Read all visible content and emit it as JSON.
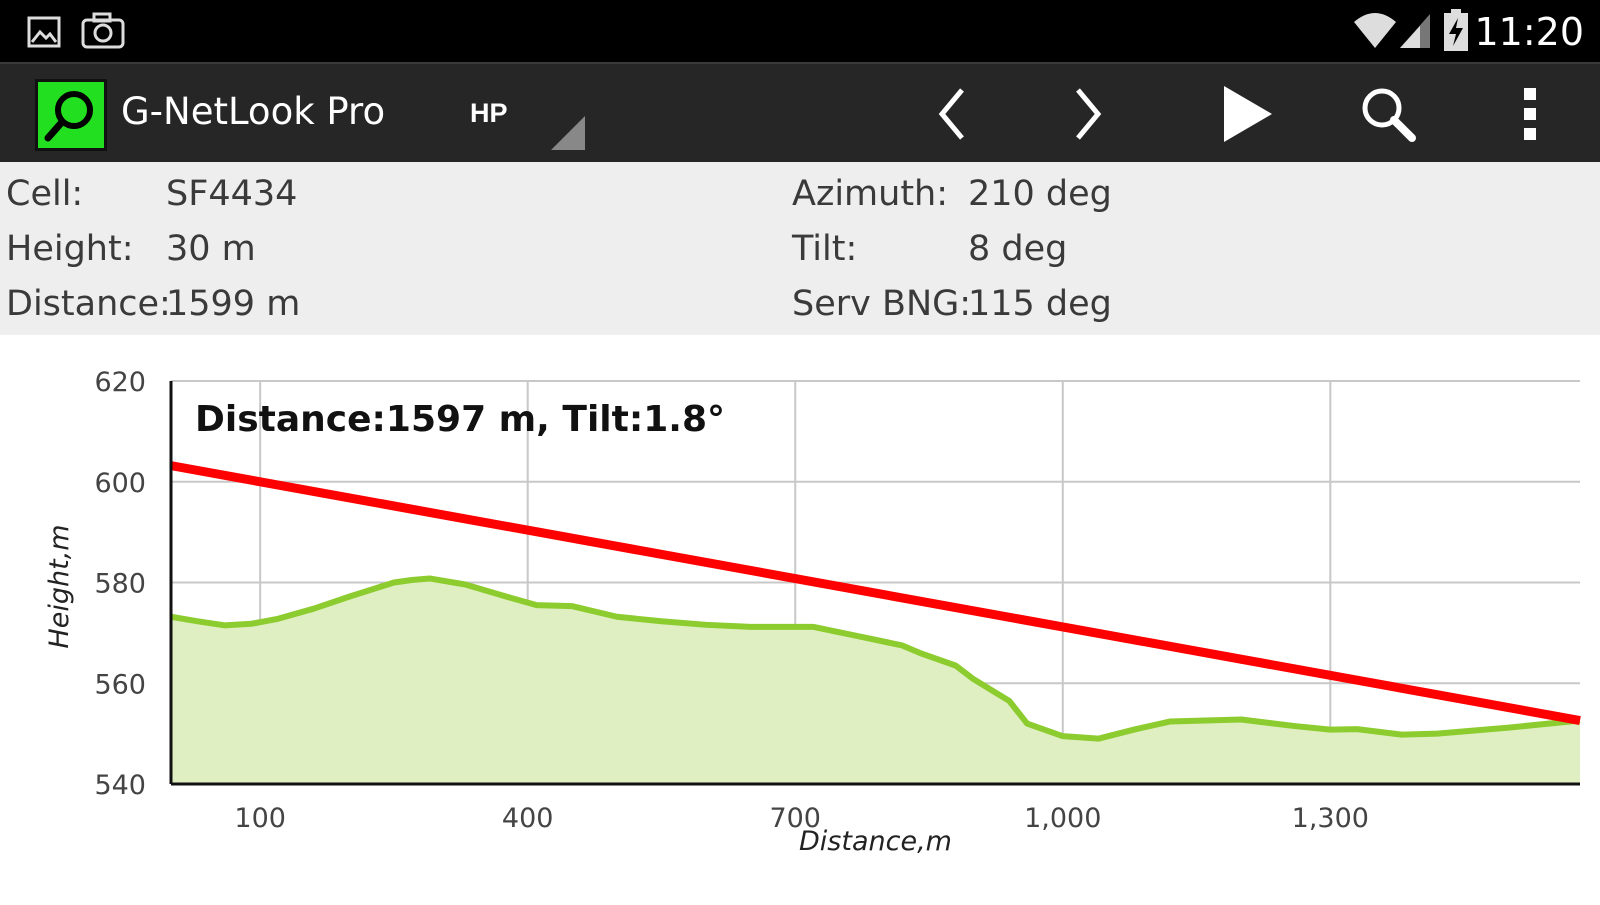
{
  "status_bar": {
    "time": "11:20",
    "left_icons": [
      "picture-icon",
      "camera-icon"
    ],
    "right_icons": [
      "wifi-icon",
      "signal-icon",
      "battery-charging-icon"
    ]
  },
  "action_bar": {
    "app_title": "G-NetLook Pro",
    "spinner_value": "HP",
    "buttons": [
      "previous-icon",
      "next-icon",
      "play-icon",
      "search-icon",
      "overflow-menu-icon"
    ]
  },
  "info": {
    "cell_label": "Cell:",
    "cell_value": "SF4434",
    "height_label": "Height:",
    "height_value": "30 m",
    "distance_label": "Distance:",
    "distance_value": "1599 m",
    "azimuth_label": "Azimuth:",
    "azimuth_value": "210 deg",
    "tilt_label": "Tilt:",
    "tilt_value": "8 deg",
    "serv_label": "Serv BNG:",
    "serv_value": "115 deg"
  },
  "colors": {
    "terrain_line": "#8ccc2e",
    "terrain_fill": "#dfefc2",
    "beam_line": "#ff0000",
    "logo_green": "#22e020"
  },
  "chart_data": {
    "type": "area",
    "annotation": "Distance:1597 m, Tilt:1.8°",
    "xlabel": "Distance,m",
    "ylabel": "Height,m",
    "xlim": [
      0,
      1580
    ],
    "ylim": [
      540,
      620
    ],
    "x_ticks": [
      100,
      400,
      700,
      1000,
      1300
    ],
    "x_tick_labels": [
      "100",
      "400",
      "700",
      "1,000",
      "1,300"
    ],
    "y_ticks": [
      540,
      560,
      580,
      600,
      620
    ],
    "y_tick_labels": [
      "540",
      "560",
      "580",
      "600",
      "620"
    ],
    "grid": true,
    "series": [
      {
        "kind": "terrain",
        "x": [
          0,
          30,
          60,
          90,
          120,
          160,
          200,
          250,
          270,
          290,
          330,
          380,
          410,
          450,
          500,
          550,
          600,
          650,
          700,
          720,
          780,
          820,
          840,
          880,
          900,
          940,
          960,
          1000,
          1040,
          1080,
          1120,
          1200,
          1260,
          1300,
          1330,
          1380,
          1420,
          1500,
          1580
        ],
        "y": [
          573.2,
          572.3,
          571.5,
          571.8,
          572.8,
          574.8,
          577.2,
          580,
          580.5,
          580.8,
          579.6,
          577,
          575.5,
          575.3,
          573.2,
          572.3,
          571.6,
          571.2,
          571.2,
          571.2,
          569,
          567.5,
          566,
          563.5,
          560.8,
          556.5,
          552,
          549.5,
          549,
          550.8,
          552.4,
          552.8,
          551.5,
          550.8,
          550.9,
          549.8,
          550,
          551.2,
          552.6
        ]
      },
      {
        "kind": "beam",
        "x": [
          0,
          1580
        ],
        "y": [
          603.2,
          552.6
        ]
      }
    ]
  }
}
